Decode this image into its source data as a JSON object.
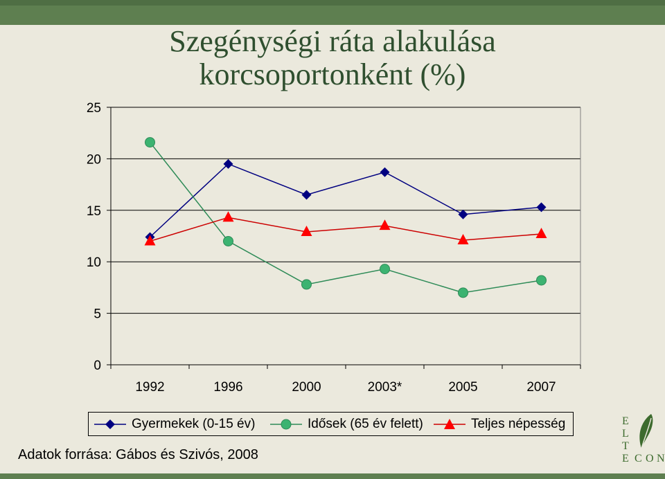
{
  "chart_data": {
    "type": "line",
    "title_line1": "Szegénységi ráta alakulása",
    "title_line2": "korcsoportonként (%)",
    "categories": [
      "1992",
      "1996",
      "2000",
      "2003*",
      "2005",
      "2007"
    ],
    "ylim": [
      0,
      25
    ],
    "yticks": [
      "0",
      "5",
      "10",
      "15",
      "20",
      "25"
    ],
    "grid": true,
    "series": [
      {
        "name": "Gyermekek (0-15 év)",
        "color": "#000080",
        "marker": "diamond",
        "values": [
          12.4,
          19.5,
          16.5,
          18.7,
          14.6,
          15.3
        ]
      },
      {
        "name": "Idősek (65 év felett)",
        "color": "#2E8B57",
        "marker": "circle",
        "values": [
          21.6,
          12.0,
          7.8,
          9.3,
          7.0,
          8.2
        ]
      },
      {
        "name": "Teljes népesség",
        "color": "#CC0000",
        "marker": "triangle",
        "values": [
          12.0,
          14.3,
          12.9,
          13.5,
          12.1,
          12.7
        ]
      }
    ],
    "legend_position": "bottom",
    "source": "Adatok forrása: Gábos és Szivós, 2008"
  },
  "logo": {
    "letters": [
      "E",
      "L",
      "T",
      "E",
      "C",
      "O",
      "N"
    ]
  }
}
